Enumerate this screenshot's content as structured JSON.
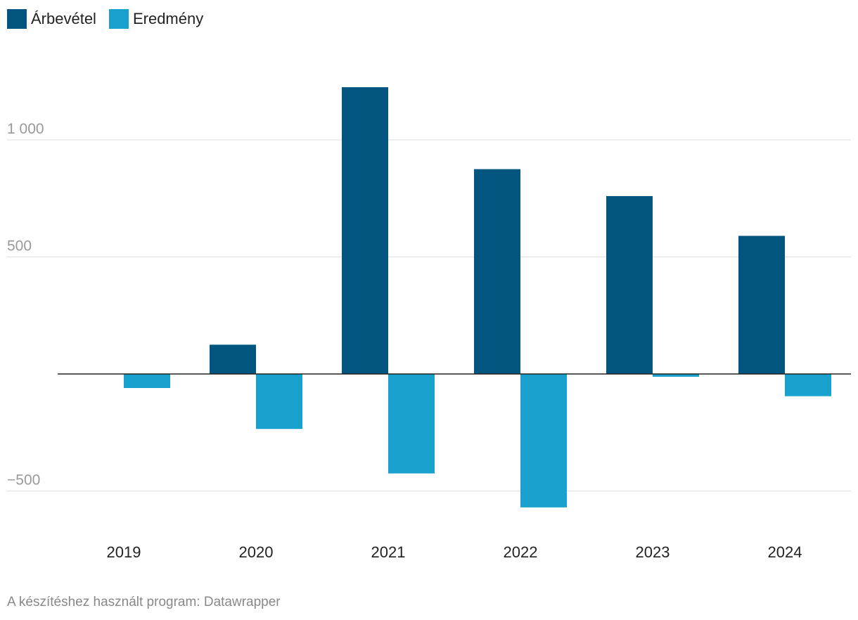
{
  "legend": {
    "items": [
      {
        "label": "Árbevétel",
        "color": "#02557e"
      },
      {
        "label": "Eredmény",
        "color": "#18a1cd"
      }
    ]
  },
  "footer": {
    "text": "A készítéshez használt program: Datawrapper"
  },
  "chart_data": {
    "type": "bar",
    "categories": [
      "2019",
      "2020",
      "2021",
      "2022",
      "2023",
      "2024"
    ],
    "series": [
      {
        "name": "Árbevétel",
        "values": [
          0,
          125,
          1225,
          875,
          760,
          590
        ]
      },
      {
        "name": "Eredmény",
        "values": [
          -60,
          -235,
          -425,
          -570,
          -12,
          -95
        ]
      }
    ],
    "ylim": [
      -700,
      1250
    ],
    "yticks": [
      -500,
      500,
      1000
    ],
    "ytick_labels": [
      "−500",
      "500",
      "1 000"
    ],
    "title": "",
    "xlabel": "",
    "ylabel": "",
    "legend_position": "top-left"
  }
}
